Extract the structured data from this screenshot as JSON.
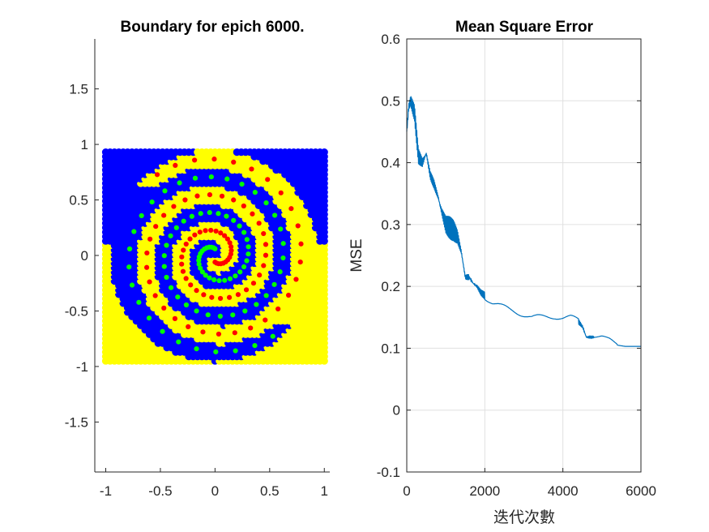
{
  "figure": {
    "left_panel": {
      "title": "Boundary for epich 6000.",
      "xticks": [
        "-1",
        "-0.5",
        "0",
        "0.5",
        "1"
      ],
      "yticks": [
        "1.5",
        "1",
        "0.5",
        "0",
        "-0.5",
        "-1",
        "-1.5"
      ]
    },
    "right_panel": {
      "title": "Mean Square Error",
      "ylabel": "MSE",
      "xlabel": "迭代次數",
      "xticks": [
        "0",
        "2000",
        "4000",
        "6000"
      ],
      "yticks": [
        "0.6",
        "0.5",
        "0.4",
        "0.3",
        "0.2",
        "0.1",
        "0",
        "-0.1"
      ]
    }
  },
  "chart_data": [
    {
      "type": "scatter",
      "title": "Boundary for epich 6000.",
      "xlim": [
        -1.1,
        1.05
      ],
      "ylim": [
        -1.95,
        1.95
      ],
      "grid": false,
      "colors": {
        "class_a_region": "#0000ff",
        "class_b_region": "#ffff00",
        "spiral_red": "#ff0000",
        "spiral_green": "#00ff00"
      },
      "decision_grid": {
        "x_range": [
          -1,
          1
        ],
        "y_range": [
          -0.95,
          0.95
        ],
        "note_region": "blue/yellow classification of a [-1,1]×[-0.95,0.95] grid"
      },
      "series": [
        {
          "name": "",
          "color": "#ff0000",
          "spiral": {
            "r_max": 0.9,
            "turns": 2.6,
            "points": 80,
            "phase_deg": 270
          }
        },
        {
          "name": "",
          "color": "#00ff00",
          "spiral": {
            "r_max": 0.9,
            "turns": 2.6,
            "points": 80,
            "phase_deg": 90
          }
        }
      ]
    },
    {
      "type": "line",
      "title": "Mean Square Error",
      "xlabel": "迭代次數",
      "ylabel": "MSE",
      "xlim": [
        0,
        6000
      ],
      "ylim": [
        -0.1,
        0.6
      ],
      "grid": true,
      "line_color": "#0072bd",
      "series": [
        {
          "name": "",
          "x": [
            0,
            50,
            100,
            150,
            200,
            300,
            400,
            500,
            600,
            700,
            800,
            900,
            1000,
            1100,
            1200,
            1300,
            1400,
            1500,
            1600,
            1700,
            1800,
            1900,
            2000,
            2200,
            2400,
            2600,
            2800,
            3000,
            3200,
            3400,
            3600,
            3800,
            4000,
            4200,
            4400,
            4500,
            4600,
            4700,
            4800,
            5000,
            5200,
            5400,
            5600,
            5800,
            6000
          ],
          "y": [
            0.45,
            0.49,
            0.5,
            0.49,
            0.48,
            0.41,
            0.4,
            0.415,
            0.38,
            0.365,
            0.345,
            0.32,
            0.3,
            0.295,
            0.29,
            0.28,
            0.255,
            0.215,
            0.215,
            0.205,
            0.2,
            0.19,
            0.185,
            0.175,
            0.17,
            0.165,
            0.16,
            0.155,
            0.15,
            0.15,
            0.15,
            0.15,
            0.148,
            0.148,
            0.143,
            0.135,
            0.118,
            0.118,
            0.118,
            0.118,
            0.113,
            0.105,
            0.103,
            0.103,
            0.103
          ]
        }
      ]
    }
  ]
}
